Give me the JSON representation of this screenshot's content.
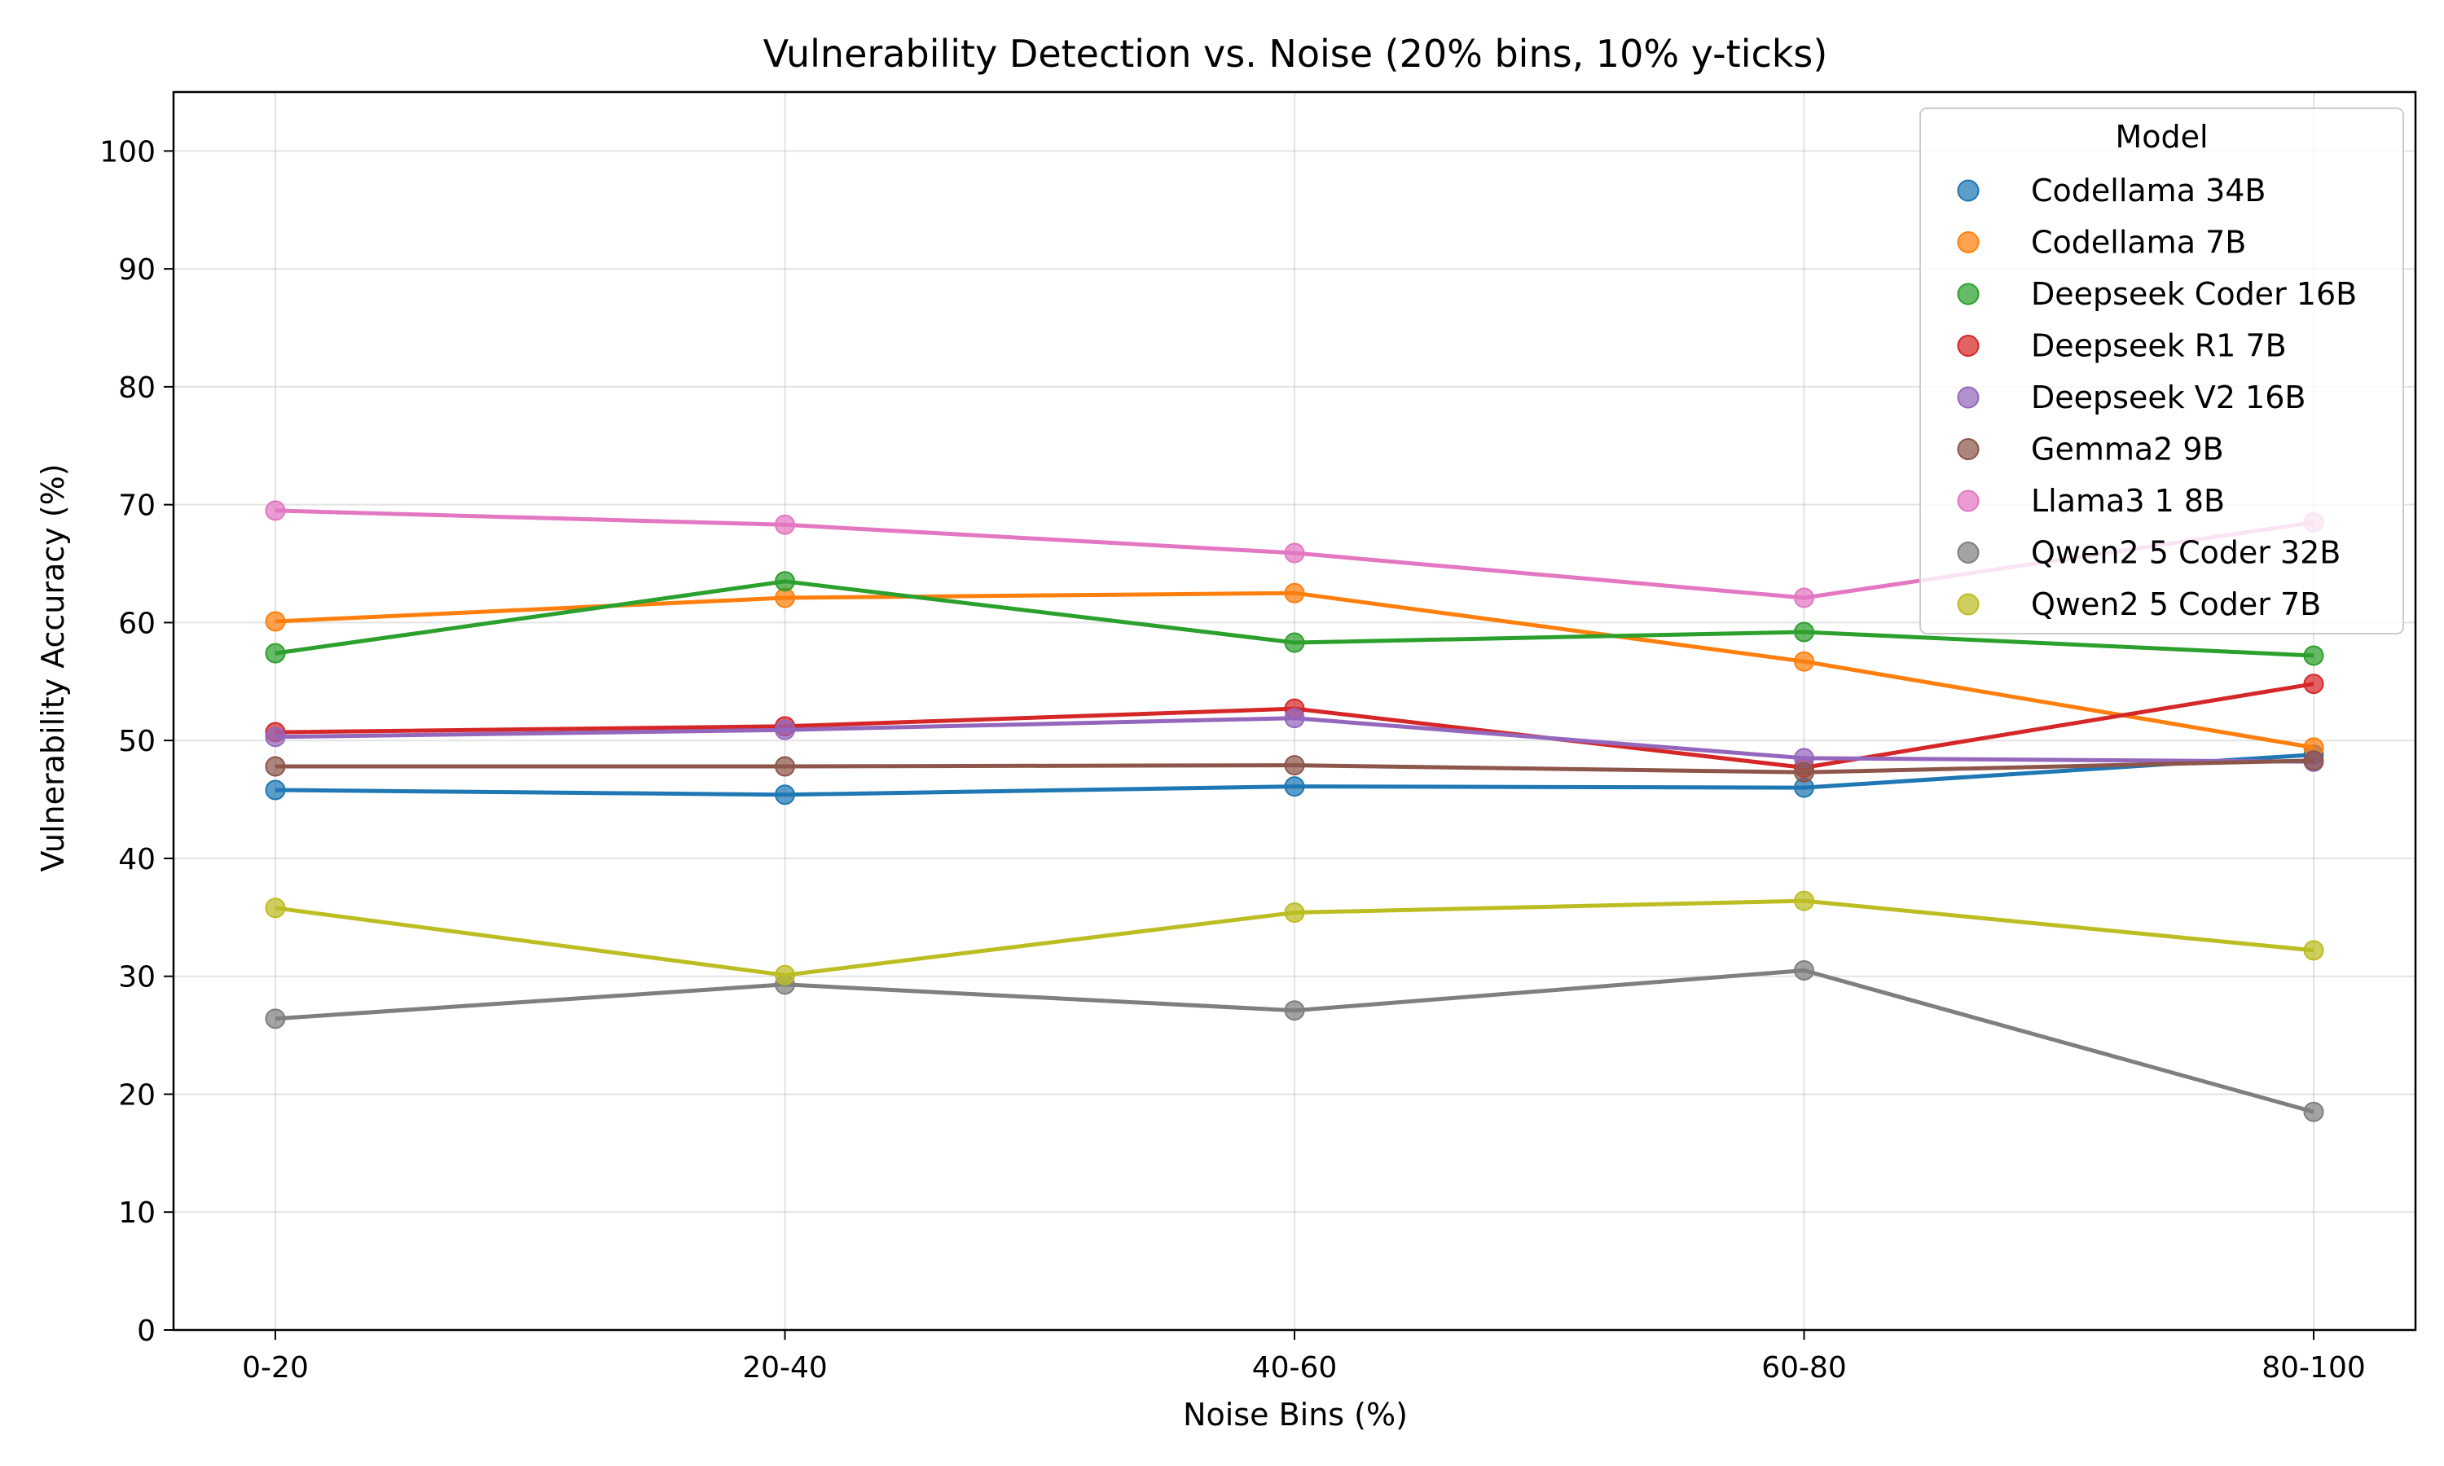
{
  "chart_data": {
    "type": "line",
    "title": "Vulnerability Detection vs. Noise (20% bins, 10% y-ticks)",
    "xlabel": "Noise Bins (%)",
    "ylabel": "Vulnerability Accuracy (%)",
    "categories": [
      "0-20",
      "20-40",
      "40-60",
      "60-80",
      "80-100"
    ],
    "ylim": [
      0,
      105
    ],
    "yticks": [
      0,
      10,
      20,
      30,
      40,
      50,
      60,
      70,
      80,
      90,
      100
    ],
    "grid": true,
    "legend": {
      "title": "Model",
      "placement": "top-right"
    },
    "series": [
      {
        "name": "Codellama 34B",
        "color": "#1f77b4",
        "values": [
          45.8,
          45.4,
          46.1,
          46.0,
          48.8
        ]
      },
      {
        "name": "Codellama 7B",
        "color": "#ff7f0e",
        "values": [
          60.1,
          62.1,
          62.5,
          56.7,
          49.4
        ]
      },
      {
        "name": "Deepseek Coder 16B",
        "color": "#2ca02c",
        "values": [
          57.4,
          63.5,
          58.3,
          59.2,
          57.2
        ]
      },
      {
        "name": "Deepseek R1 7B",
        "color": "#d62728",
        "values": [
          50.7,
          51.2,
          52.7,
          47.7,
          54.8
        ]
      },
      {
        "name": "Deepseek V2 16B",
        "color": "#9467bd",
        "values": [
          50.3,
          50.9,
          51.9,
          48.5,
          48.2
        ]
      },
      {
        "name": "Gemma2 9B",
        "color": "#8c564b",
        "values": [
          47.8,
          47.8,
          47.9,
          47.3,
          48.3
        ]
      },
      {
        "name": "Llama3 1 8B",
        "color": "#e377c2",
        "values": [
          69.5,
          68.3,
          65.9,
          62.1,
          68.5
        ]
      },
      {
        "name": "Qwen2 5 Coder 32B",
        "color": "#7f7f7f",
        "values": [
          26.4,
          29.3,
          27.1,
          30.5,
          18.5
        ]
      },
      {
        "name": "Qwen2 5 Coder 7B",
        "color": "#bcbd22",
        "values": [
          35.8,
          30.1,
          35.4,
          36.4,
          32.2
        ]
      }
    ]
  }
}
